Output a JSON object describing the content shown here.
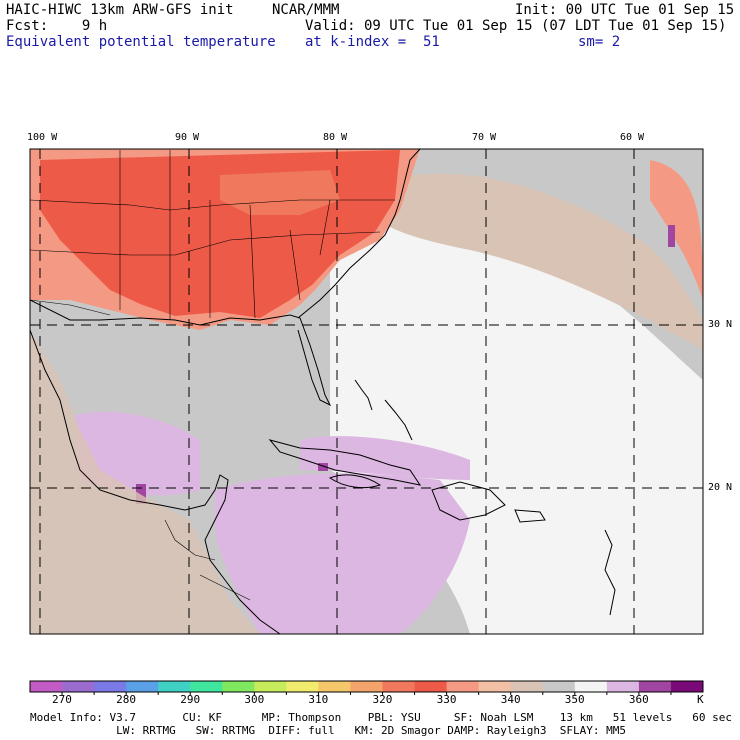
{
  "header": {
    "model": "HAIC-HIWC 13km ARW-GFS init",
    "center": "NCAR/MMM",
    "init": "Init: 00 UTC Tue 01 Sep 15",
    "fcst": "Fcst:    9 h",
    "valid": "Valid: 09 UTC Tue 01 Sep 15 (07 LDT Tue 01 Sep 15)",
    "field": "Equivalent potential temperature",
    "level": "at k-index =  51",
    "smooth": "sm= 2"
  },
  "map": {
    "lon_labels": [
      "100 W",
      "90 W",
      "80 W",
      "70 W",
      "60 W"
    ],
    "lat_labels": [
      "30 N",
      "20 N"
    ]
  },
  "colorbar": {
    "unit": "K",
    "tick_labels": [
      "270",
      "280",
      "290",
      "300",
      "310",
      "320",
      "330",
      "340",
      "350",
      "360"
    ],
    "colors": [
      "#c35bc5",
      "#9a6cd0",
      "#7a7ae6",
      "#5aa0e6",
      "#3ed1c4",
      "#3ee69e",
      "#7fe85e",
      "#c6ec5c",
      "#f2ec6e",
      "#f4c86a",
      "#f4a46a",
      "#f0785c",
      "#ee5a48",
      "#f49a84",
      "#f2c0a4",
      "#d9c3b5",
      "#c8c8c8",
      "#f4f4f4",
      "#dcb7e1",
      "#a046a0",
      "#7a0a78"
    ]
  },
  "model_info": {
    "line1": "Model Info: V3.7       CU: KF      MP: Thompson    PBL: YSU     SF: Noah LSM    13 km   51 levels   60 sec",
    "line2": "             LW: RRTMG   SW: RRTMG  DIFF: full   KM: 2D Smagor DAMP: Rayleigh3  SFLAY: MM5"
  }
}
